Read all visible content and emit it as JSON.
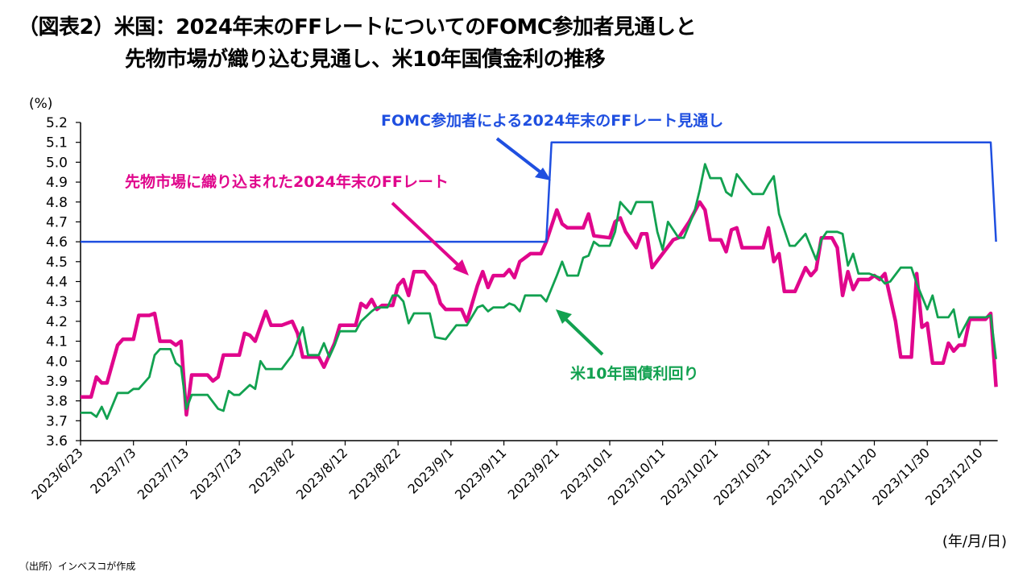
{
  "title_line1": "（図表2）米国：2024年末のFFレートについてのFOMC参加者見通しと",
  "title_line2": "先物市場が織り込む見通し、米10年国債金利の推移",
  "source": "（出所）インベスコが作成",
  "chart_data": {
    "type": "line",
    "ylabel": "(%)",
    "xlabel": "(年/月/日)",
    "ylim": [
      3.6,
      5.2
    ],
    "yticks": [
      "3.6",
      "3.7",
      "3.8",
      "3.9",
      "4.0",
      "4.1",
      "4.2",
      "4.3",
      "4.4",
      "4.5",
      "4.6",
      "4.7",
      "4.8",
      "4.9",
      "5.0",
      "5.1",
      "5.2"
    ],
    "xticks": [
      "2023/6/23",
      "2023/7/3",
      "2023/7/13",
      "2023/7/23",
      "2023/8/2",
      "2023/8/12",
      "2023/8/22",
      "2023/9/1",
      "2023/9/11",
      "2023/9/21",
      "2023/10/1",
      "2023/10/11",
      "2023/10/21",
      "2023/10/31",
      "2023/11/10",
      "2023/11/20",
      "2023/11/30",
      "2023/12/10"
    ],
    "grid": false,
    "series": [
      {
        "name": "FOMC参加者による2024年末のFFレート見通し",
        "color": "#1f4fe0",
        "points": [
          [
            "2023/6/23",
            4.6
          ],
          [
            "2023/9/19",
            4.6
          ],
          [
            "2023/9/20",
            5.1
          ],
          [
            "2023/12/12",
            5.1
          ],
          [
            "2023/12/13",
            4.6
          ]
        ]
      },
      {
        "name": "先物市場に織り込まれた2024年末のFFレート",
        "color": "#e0068c",
        "points": [
          [
            "2023/6/23",
            3.82
          ],
          [
            "2023/6/25",
            3.82
          ],
          [
            "2023/6/26",
            3.92
          ],
          [
            "2023/6/27",
            3.89
          ],
          [
            "2023/6/28",
            3.89
          ],
          [
            "2023/6/30",
            4.08
          ],
          [
            "2023/7/1",
            4.11
          ],
          [
            "2023/7/3",
            4.11
          ],
          [
            "2023/7/4",
            4.23
          ],
          [
            "2023/7/6",
            4.23
          ],
          [
            "2023/7/7",
            4.24
          ],
          [
            "2023/7/8",
            4.1
          ],
          [
            "2023/7/10",
            4.1
          ],
          [
            "2023/7/11",
            4.08
          ],
          [
            "2023/7/12",
            4.1
          ],
          [
            "2023/7/13",
            3.73
          ],
          [
            "2023/7/14",
            3.93
          ],
          [
            "2023/7/17",
            3.93
          ],
          [
            "2023/7/18",
            3.9
          ],
          [
            "2023/7/19",
            3.92
          ],
          [
            "2023/7/20",
            4.03
          ],
          [
            "2023/7/23",
            4.03
          ],
          [
            "2023/7/24",
            4.14
          ],
          [
            "2023/7/25",
            4.13
          ],
          [
            "2023/7/26",
            4.1
          ],
          [
            "2023/7/28",
            4.25
          ],
          [
            "2023/7/29",
            4.18
          ],
          [
            "2023/7/31",
            4.18
          ],
          [
            "2023/8/2",
            4.2
          ],
          [
            "2023/8/3",
            4.14
          ],
          [
            "2023/8/4",
            4.02
          ],
          [
            "2023/8/7",
            4.02
          ],
          [
            "2023/8/8",
            3.97
          ],
          [
            "2023/8/10",
            4.09
          ],
          [
            "2023/8/11",
            4.18
          ],
          [
            "2023/8/14",
            4.18
          ],
          [
            "2023/8/15",
            4.29
          ],
          [
            "2023/8/16",
            4.27
          ],
          [
            "2023/8/17",
            4.31
          ],
          [
            "2023/8/18",
            4.26
          ],
          [
            "2023/8/19",
            4.28
          ],
          [
            "2023/8/21",
            4.28
          ],
          [
            "2023/8/22",
            4.38
          ],
          [
            "2023/8/23",
            4.41
          ],
          [
            "2023/8/24",
            4.33
          ],
          [
            "2023/8/25",
            4.45
          ],
          [
            "2023/8/27",
            4.45
          ],
          [
            "2023/8/29",
            4.38
          ],
          [
            "2023/8/30",
            4.29
          ],
          [
            "2023/8/31",
            4.26
          ],
          [
            "2023/9/1",
            4.26
          ],
          [
            "2023/9/3",
            4.26
          ],
          [
            "2023/9/4",
            4.2
          ],
          [
            "2023/9/6",
            4.38
          ],
          [
            "2023/9/7",
            4.45
          ],
          [
            "2023/9/8",
            4.37
          ],
          [
            "2023/9/9",
            4.43
          ],
          [
            "2023/9/11",
            4.43
          ],
          [
            "2023/9/12",
            4.46
          ],
          [
            "2023/9/13",
            4.42
          ],
          [
            "2023/9/14",
            4.5
          ],
          [
            "2023/9/16",
            4.54
          ],
          [
            "2023/9/18",
            4.54
          ],
          [
            "2023/9/19",
            4.6
          ],
          [
            "2023/9/21",
            4.76
          ],
          [
            "2023/9/22",
            4.69
          ],
          [
            "2023/9/23",
            4.67
          ],
          [
            "2023/9/26",
            4.67
          ],
          [
            "2023/9/27",
            4.74
          ],
          [
            "2023/9/28",
            4.63
          ],
          [
            "2023/10/1",
            4.62
          ],
          [
            "2023/10/2",
            4.7
          ],
          [
            "2023/10/3",
            4.72
          ],
          [
            "2023/10/4",
            4.65
          ],
          [
            "2023/10/6",
            4.57
          ],
          [
            "2023/10/7",
            4.64
          ],
          [
            "2023/10/8",
            4.64
          ],
          [
            "2023/10/9",
            4.47
          ],
          [
            "2023/10/11",
            4.54
          ],
          [
            "2023/10/13",
            4.61
          ],
          [
            "2023/10/14",
            4.62
          ],
          [
            "2023/10/16",
            4.7
          ],
          [
            "2023/10/18",
            4.8
          ],
          [
            "2023/10/19",
            4.76
          ],
          [
            "2023/10/20",
            4.61
          ],
          [
            "2023/10/22",
            4.61
          ],
          [
            "2023/10/23",
            4.55
          ],
          [
            "2023/10/24",
            4.66
          ],
          [
            "2023/10/25",
            4.67
          ],
          [
            "2023/10/26",
            4.57
          ],
          [
            "2023/10/30",
            4.57
          ],
          [
            "2023/10/31",
            4.67
          ],
          [
            "2023/11/1",
            4.5
          ],
          [
            "2023/11/2",
            4.54
          ],
          [
            "2023/11/3",
            4.35
          ],
          [
            "2023/11/5",
            4.35
          ],
          [
            "2023/11/7",
            4.47
          ],
          [
            "2023/11/8",
            4.43
          ],
          [
            "2023/11/9",
            4.46
          ],
          [
            "2023/11/10",
            4.62
          ],
          [
            "2023/11/12",
            4.62
          ],
          [
            "2023/11/13",
            4.57
          ],
          [
            "2023/11/14",
            4.33
          ],
          [
            "2023/11/15",
            4.45
          ],
          [
            "2023/11/16",
            4.36
          ],
          [
            "2023/11/17",
            4.41
          ],
          [
            "2023/11/19",
            4.41
          ],
          [
            "2023/11/20",
            4.43
          ],
          [
            "2023/11/21",
            4.41
          ],
          [
            "2023/11/22",
            4.44
          ],
          [
            "2023/11/24",
            4.2
          ],
          [
            "2023/11/25",
            4.02
          ],
          [
            "2023/11/27",
            4.02
          ],
          [
            "2023/11/28",
            4.44
          ],
          [
            "2023/11/29",
            4.17
          ],
          [
            "2023/11/30",
            4.19
          ],
          [
            "2023/12/1",
            3.99
          ],
          [
            "2023/12/3",
            3.99
          ],
          [
            "2023/12/4",
            4.09
          ],
          [
            "2023/12/5",
            4.05
          ],
          [
            "2023/12/6",
            4.08
          ],
          [
            "2023/12/7",
            4.08
          ],
          [
            "2023/12/8",
            4.21
          ],
          [
            "2023/12/11",
            4.21
          ],
          [
            "2023/12/12",
            4.24
          ],
          [
            "2023/12/13",
            3.87
          ]
        ]
      },
      {
        "name": "米10年国債利回り",
        "color": "#12a150",
        "points": [
          [
            "2023/6/23",
            3.74
          ],
          [
            "2023/6/25",
            3.74
          ],
          [
            "2023/6/26",
            3.72
          ],
          [
            "2023/6/27",
            3.77
          ],
          [
            "2023/6/28",
            3.71
          ],
          [
            "2023/6/30",
            3.84
          ],
          [
            "2023/7/2",
            3.84
          ],
          [
            "2023/7/3",
            3.86
          ],
          [
            "2023/7/4",
            3.86
          ],
          [
            "2023/7/6",
            3.92
          ],
          [
            "2023/7/7",
            4.03
          ],
          [
            "2023/7/8",
            4.06
          ],
          [
            "2023/7/10",
            4.06
          ],
          [
            "2023/7/11",
            3.99
          ],
          [
            "2023/7/12",
            3.97
          ],
          [
            "2023/7/13",
            3.76
          ],
          [
            "2023/7/14",
            3.83
          ],
          [
            "2023/7/17",
            3.83
          ],
          [
            "2023/7/19",
            3.76
          ],
          [
            "2023/7/20",
            3.75
          ],
          [
            "2023/7/21",
            3.85
          ],
          [
            "2023/7/22",
            3.83
          ],
          [
            "2023/7/23",
            3.83
          ],
          [
            "2023/7/25",
            3.88
          ],
          [
            "2023/7/26",
            3.86
          ],
          [
            "2023/7/27",
            4.0
          ],
          [
            "2023/7/28",
            3.96
          ],
          [
            "2023/7/31",
            3.96
          ],
          [
            "2023/8/2",
            4.03
          ],
          [
            "2023/8/4",
            4.17
          ],
          [
            "2023/8/5",
            4.03
          ],
          [
            "2023/8/7",
            4.03
          ],
          [
            "2023/8/8",
            4.09
          ],
          [
            "2023/8/9",
            4.02
          ],
          [
            "2023/8/10",
            4.08
          ],
          [
            "2023/8/11",
            4.15
          ],
          [
            "2023/8/14",
            4.15
          ],
          [
            "2023/8/15",
            4.2
          ],
          [
            "2023/8/17",
            4.25
          ],
          [
            "2023/8/18",
            4.27
          ],
          [
            "2023/8/20",
            4.27
          ],
          [
            "2023/8/21",
            4.33
          ],
          [
            "2023/8/22",
            4.33
          ],
          [
            "2023/8/23",
            4.3
          ],
          [
            "2023/8/24",
            4.19
          ],
          [
            "2023/8/25",
            4.24
          ],
          [
            "2023/8/28",
            4.24
          ],
          [
            "2023/8/29",
            4.12
          ],
          [
            "2023/8/31",
            4.11
          ],
          [
            "2023/9/2",
            4.18
          ],
          [
            "2023/9/4",
            4.18
          ],
          [
            "2023/9/6",
            4.27
          ],
          [
            "2023/9/7",
            4.28
          ],
          [
            "2023/9/8",
            4.25
          ],
          [
            "2023/9/9",
            4.27
          ],
          [
            "2023/9/11",
            4.27
          ],
          [
            "2023/9/12",
            4.29
          ],
          [
            "2023/9/13",
            4.28
          ],
          [
            "2023/9/14",
            4.25
          ],
          [
            "2023/9/15",
            4.33
          ],
          [
            "2023/9/18",
            4.33
          ],
          [
            "2023/9/19",
            4.3
          ],
          [
            "2023/9/21",
            4.43
          ],
          [
            "2023/9/22",
            4.5
          ],
          [
            "2023/9/23",
            4.43
          ],
          [
            "2023/9/25",
            4.43
          ],
          [
            "2023/9/26",
            4.52
          ],
          [
            "2023/9/27",
            4.53
          ],
          [
            "2023/9/28",
            4.6
          ],
          [
            "2023/9/29",
            4.58
          ],
          [
            "2023/10/1",
            4.58
          ],
          [
            "2023/10/2",
            4.65
          ],
          [
            "2023/10/3",
            4.8
          ],
          [
            "2023/10/5",
            4.74
          ],
          [
            "2023/10/6",
            4.8
          ],
          [
            "2023/10/9",
            4.8
          ],
          [
            "2023/10/10",
            4.65
          ],
          [
            "2023/10/11",
            4.56
          ],
          [
            "2023/10/12",
            4.7
          ],
          [
            "2023/10/14",
            4.62
          ],
          [
            "2023/10/15",
            4.62
          ],
          [
            "2023/10/17",
            4.75
          ],
          [
            "2023/10/18",
            4.86
          ],
          [
            "2023/10/19",
            4.99
          ],
          [
            "2023/10/20",
            4.92
          ],
          [
            "2023/10/22",
            4.92
          ],
          [
            "2023/10/23",
            4.85
          ],
          [
            "2023/10/24",
            4.83
          ],
          [
            "2023/10/25",
            4.94
          ],
          [
            "2023/10/27",
            4.87
          ],
          [
            "2023/10/28",
            4.84
          ],
          [
            "2023/10/30",
            4.84
          ],
          [
            "2023/10/31",
            4.89
          ],
          [
            "2023/11/1",
            4.93
          ],
          [
            "2023/11/2",
            4.74
          ],
          [
            "2023/11/4",
            4.58
          ],
          [
            "2023/11/5",
            4.58
          ],
          [
            "2023/11/7",
            4.64
          ],
          [
            "2023/11/9",
            4.51
          ],
          [
            "2023/11/10",
            4.61
          ],
          [
            "2023/11/11",
            4.65
          ],
          [
            "2023/11/13",
            4.65
          ],
          [
            "2023/11/14",
            4.64
          ],
          [
            "2023/11/15",
            4.48
          ],
          [
            "2023/11/16",
            4.54
          ],
          [
            "2023/11/17",
            4.44
          ],
          [
            "2023/11/19",
            4.44
          ],
          [
            "2023/11/21",
            4.42
          ],
          [
            "2023/11/22",
            4.39
          ],
          [
            "2023/11/23",
            4.4
          ],
          [
            "2023/11/25",
            4.47
          ],
          [
            "2023/11/27",
            4.47
          ],
          [
            "2023/11/28",
            4.39
          ],
          [
            "2023/11/30",
            4.26
          ],
          [
            "2023/12/1",
            4.33
          ],
          [
            "2023/12/2",
            4.22
          ],
          [
            "2023/12/4",
            4.22
          ],
          [
            "2023/12/5",
            4.26
          ],
          [
            "2023/12/6",
            4.12
          ],
          [
            "2023/12/8",
            4.22
          ],
          [
            "2023/12/11",
            4.22
          ],
          [
            "2023/12/12",
            4.23
          ],
          [
            "2023/12/13",
            4.01
          ]
        ]
      }
    ],
    "annotations": [
      {
        "text": "FOMC参加者による2024年末のFFレート見通し",
        "color": "#1f4fe0"
      },
      {
        "text": "先物市場に織り込まれた2024年末のFFレート",
        "color": "#e0068c"
      },
      {
        "text": "米10年国債利回り",
        "color": "#12a150"
      }
    ]
  }
}
